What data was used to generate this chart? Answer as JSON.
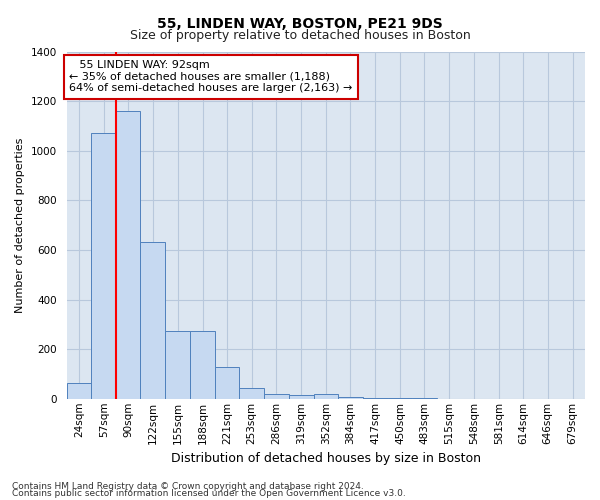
{
  "title": "55, LINDEN WAY, BOSTON, PE21 9DS",
  "subtitle": "Size of property relative to detached houses in Boston",
  "xlabel": "Distribution of detached houses by size in Boston",
  "ylabel": "Number of detached properties",
  "footnote1": "Contains HM Land Registry data © Crown copyright and database right 2024.",
  "footnote2": "Contains public sector information licensed under the Open Government Licence v3.0.",
  "annotation_line1": "55 LINDEN WAY: 92sqm",
  "annotation_line2": "← 35% of detached houses are smaller (1,188)",
  "annotation_line3": "64% of semi-detached houses are larger (2,163) →",
  "bin_left_edges": [
    24,
    57,
    90,
    122,
    155,
    188,
    221,
    253,
    286,
    319,
    352,
    384,
    417,
    450,
    483,
    515,
    548,
    581,
    614,
    646,
    679
  ],
  "bar_heights": [
    65,
    1070,
    1160,
    630,
    275,
    275,
    130,
    45,
    20,
    15,
    20,
    8,
    4,
    3,
    2,
    1,
    0,
    0,
    0,
    0,
    0
  ],
  "bar_color": "#c6d9f1",
  "bar_edge_color": "#4f81bd",
  "red_line_x": 90,
  "ylim": [
    0,
    1400
  ],
  "yticks": [
    0,
    200,
    400,
    600,
    800,
    1000,
    1200,
    1400
  ],
  "background_color": "#dce6f1",
  "grid_color": "#e8eef6",
  "plot_bg_color": "#dce6f1",
  "annotation_box_facecolor": "#ffffff",
  "annotation_box_edgecolor": "#cc0000",
  "title_fontsize": 10,
  "subtitle_fontsize": 9,
  "xlabel_fontsize": 9,
  "ylabel_fontsize": 8,
  "tick_fontsize": 7.5,
  "annotation_fontsize": 8,
  "footnote_fontsize": 6.5
}
